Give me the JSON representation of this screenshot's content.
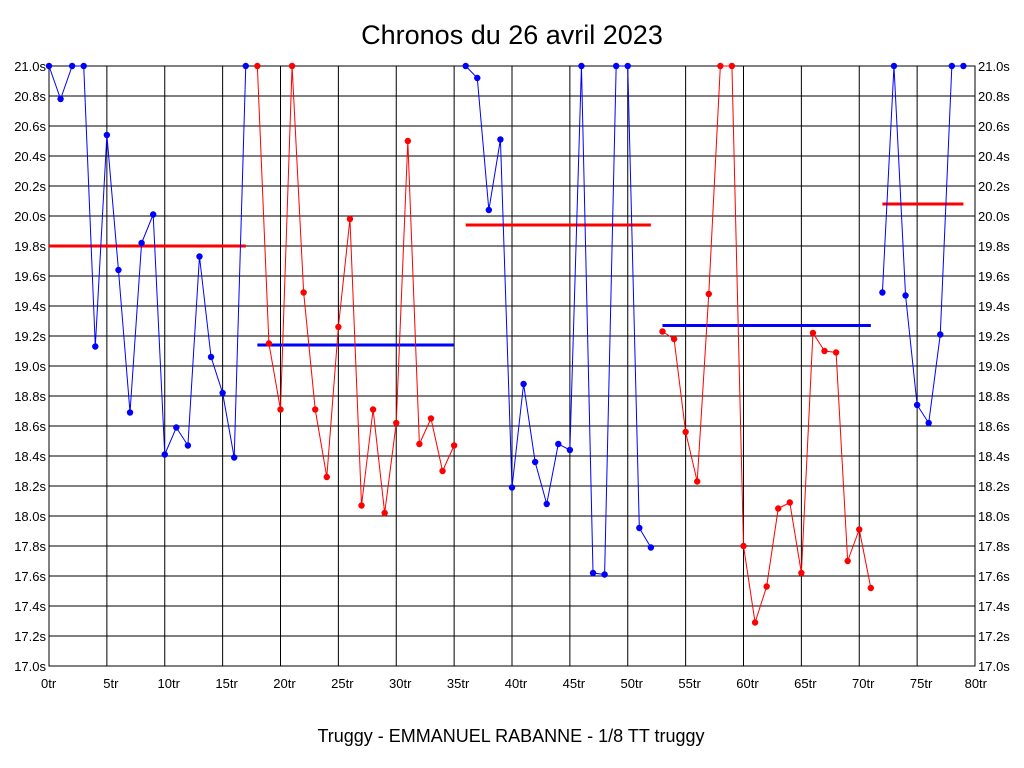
{
  "chart_data": {
    "type": "line",
    "title": "Chronos du 26 avril 2023",
    "footer": "Truggy - EMMANUEL RABANNE - 1/8 TT truggy",
    "xlabel": "",
    "ylabel": "",
    "xlim": [
      0,
      80
    ],
    "ylim": [
      17.0,
      21.0
    ],
    "x_ticks": [
      0,
      5,
      10,
      15,
      20,
      25,
      30,
      35,
      40,
      45,
      50,
      55,
      60,
      65,
      70,
      75,
      80
    ],
    "x_tick_labels": [
      "0tr",
      "5tr",
      "10tr",
      "15tr",
      "20tr",
      "25tr",
      "30tr",
      "35tr",
      "40tr",
      "45tr",
      "50tr",
      "55tr",
      "60tr",
      "65tr",
      "70tr",
      "75tr",
      "80tr"
    ],
    "y_ticks": [
      17.0,
      17.2,
      17.4,
      17.6,
      17.8,
      18.0,
      18.2,
      18.4,
      18.6,
      18.8,
      19.0,
      19.2,
      19.4,
      19.6,
      19.8,
      20.0,
      20.2,
      20.4,
      20.6,
      20.8,
      21.0
    ],
    "y_tick_labels": [
      "17.0s",
      "17.2s",
      "17.4s",
      "17.6s",
      "17.8s",
      "18.0s",
      "18.2s",
      "18.4s",
      "18.6s",
      "18.8s",
      "19.0s",
      "19.2s",
      "19.4s",
      "19.6s",
      "19.8s",
      "20.0s",
      "20.2s",
      "20.4s",
      "20.6s",
      "20.8s",
      "21.0s"
    ],
    "grid": true,
    "colors": {
      "blue": "#0000ff",
      "red": "#ff0000",
      "grid": "#000000"
    },
    "series": [
      {
        "color": "blue",
        "x": [
          0,
          1,
          2,
          3,
          4,
          5,
          6,
          7,
          8,
          9,
          10,
          11,
          12,
          13,
          14,
          15,
          16,
          17
        ],
        "y": [
          21.0,
          20.78,
          21.0,
          21.0,
          19.13,
          20.54,
          19.64,
          18.69,
          19.82,
          20.01,
          18.41,
          18.59,
          18.47,
          19.73,
          19.06,
          18.82,
          18.39,
          21.0
        ]
      },
      {
        "color": "red",
        "x": [
          18,
          19,
          20,
          21,
          22,
          23,
          24,
          25,
          26,
          27,
          28,
          29,
          30,
          31,
          32,
          33,
          34,
          35
        ],
        "y": [
          21.0,
          19.15,
          18.71,
          21.0,
          19.49,
          18.71,
          18.26,
          19.26,
          19.98,
          18.07,
          18.71,
          18.02,
          18.62,
          20.5,
          18.48,
          18.65,
          18.3,
          18.47
        ]
      },
      {
        "color": "blue",
        "x": [
          36,
          37,
          38,
          39,
          40,
          41,
          42,
          43,
          44,
          45,
          46,
          47,
          48,
          49,
          50,
          51,
          52
        ],
        "y": [
          21.0,
          20.92,
          20.04,
          20.51,
          18.19,
          18.88,
          18.36,
          18.08,
          18.48,
          18.44,
          21.0,
          17.62,
          17.61,
          21.0,
          21.0,
          17.92,
          17.79
        ]
      },
      {
        "color": "red",
        "x": [
          53,
          54,
          55,
          56,
          57,
          58,
          59,
          60,
          61,
          62,
          63,
          64,
          65,
          66,
          67,
          68,
          69,
          70,
          71
        ],
        "y": [
          19.23,
          19.18,
          18.56,
          18.23,
          19.48,
          21.0,
          21.0,
          17.8,
          17.29,
          17.53,
          18.05,
          18.09,
          17.62,
          19.22,
          19.1,
          19.09,
          17.7,
          17.91,
          17.52
        ]
      },
      {
        "color": "blue",
        "x": [
          72,
          73,
          74,
          75,
          76,
          77,
          78,
          79
        ],
        "y": [
          19.49,
          21.0,
          19.47,
          18.74,
          18.62,
          19.21,
          21.0,
          21.0
        ]
      }
    ],
    "averages": [
      {
        "color": "red",
        "x": [
          0,
          17
        ],
        "y": 19.8
      },
      {
        "color": "blue",
        "x": [
          18,
          35
        ],
        "y": 19.14
      },
      {
        "color": "red",
        "x": [
          36,
          52
        ],
        "y": 19.94
      },
      {
        "color": "blue",
        "x": [
          53,
          71
        ],
        "y": 19.27
      },
      {
        "color": "red",
        "x": [
          72,
          79
        ],
        "y": 20.08
      }
    ]
  }
}
